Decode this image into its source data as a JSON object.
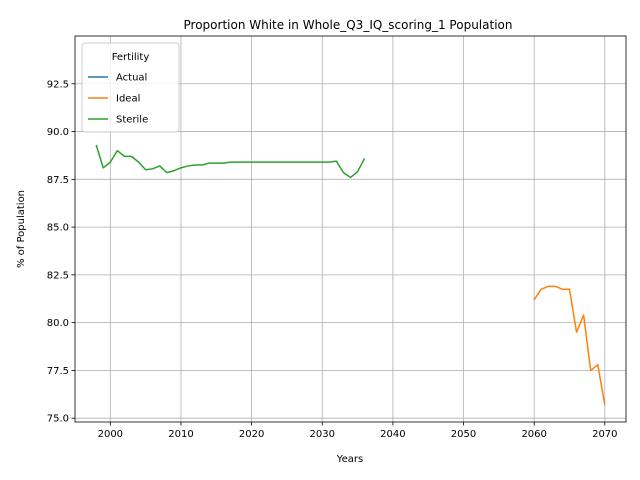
{
  "chart_data": {
    "type": "line",
    "title": "Proportion White in Whole_Q3_IQ_scoring_1 Population",
    "xlabel": "Years",
    "ylabel": "% of Population",
    "xlim": [
      1995,
      2073
    ],
    "ylim": [
      74.8,
      95.0
    ],
    "xticks": [
      2000,
      2010,
      2020,
      2030,
      2040,
      2050,
      2060,
      2070
    ],
    "yticks": [
      75.0,
      77.5,
      80.0,
      82.5,
      85.0,
      87.5,
      90.0,
      92.5
    ],
    "ytick_labels": [
      "75.0",
      "77.5",
      "80.0",
      "82.5",
      "85.0",
      "87.5",
      "90.0",
      "92.5"
    ],
    "grid": true,
    "legend": {
      "title": "Fertility",
      "placement": "top-left"
    },
    "series": [
      {
        "name": "Actual",
        "color": "#1f77b4",
        "x": [],
        "y": []
      },
      {
        "name": "Ideal",
        "color": "#ff7f0e",
        "x": [
          2060,
          2061,
          2062,
          2063,
          2064,
          2065,
          2066,
          2067,
          2068,
          2069,
          2070
        ],
        "y": [
          81.2,
          81.75,
          81.9,
          81.9,
          81.75,
          81.75,
          79.5,
          80.4,
          77.5,
          77.8,
          75.7
        ]
      },
      {
        "name": "Sterile",
        "color": "#2ca02c",
        "x": [
          1998,
          1999,
          2000,
          2001,
          2002,
          2003,
          2004,
          2005,
          2006,
          2007,
          2008,
          2009,
          2010,
          2011,
          2012,
          2013,
          2014,
          2015,
          2016,
          2017,
          2018,
          2019,
          2020,
          2021,
          2022,
          2023,
          2024,
          2025,
          2026,
          2027,
          2028,
          2029,
          2030,
          2031,
          2032,
          2033,
          2034,
          2035,
          2036
        ],
        "y": [
          89.3,
          88.1,
          88.4,
          89.0,
          88.7,
          88.7,
          88.4,
          88.0,
          88.05,
          88.2,
          87.85,
          87.95,
          88.1,
          88.2,
          88.25,
          88.25,
          88.35,
          88.35,
          88.35,
          88.4,
          88.4,
          88.4,
          88.4,
          88.4,
          88.4,
          88.4,
          88.4,
          88.4,
          88.4,
          88.4,
          88.4,
          88.4,
          88.4,
          88.4,
          88.45,
          87.85,
          87.6,
          87.9,
          88.6
        ]
      }
    ]
  }
}
